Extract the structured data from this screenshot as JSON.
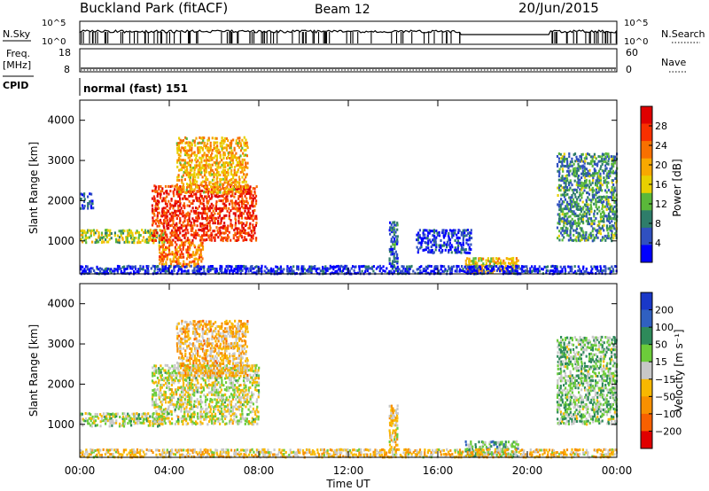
{
  "header": {
    "site": "Buckland Park (fitACF)",
    "beam": "Beam 12",
    "date": "20/Jun/2015"
  },
  "side_labels": {
    "nsky": "N.Sky",
    "nsearch": "N.Search",
    "freq": "Freq.",
    "freq_unit": "[MHz]",
    "nave": "Nave",
    "cpid": "CPID"
  },
  "status_panels": {
    "noise_ticks_left": [
      "10^5",
      "10^0"
    ],
    "noise_ticks_right": [
      "10^5",
      "10^0"
    ],
    "freq_ticks_left": [
      "18",
      "8"
    ],
    "nave_ticks_right": [
      "60",
      "0"
    ],
    "cpid_text": "normal (fast) 151"
  },
  "chart_data": [
    {
      "type": "heatmap",
      "name": "power",
      "xlabel": "Time UT",
      "ylabel": "Slant Range [km]",
      "xlim_hours": [
        0,
        24
      ],
      "ylim_km": [
        180,
        4500
      ],
      "x_tick_labels": [
        "00:00",
        "04:00",
        "08:00",
        "12:00",
        "16:00",
        "20:00",
        "00:00"
      ],
      "y_ticks": [
        1000,
        2000,
        3000,
        4000
      ],
      "colorbar": {
        "label": "Power [dB]",
        "ticks": [
          4,
          8,
          12,
          16,
          20,
          24,
          28
        ],
        "colors": [
          "#0000ff",
          "#3050c0",
          "#2e7d6a",
          "#5ab83a",
          "#e8d000",
          "#f8a800",
          "#f87000",
          "#f83000",
          "#e00000"
        ]
      },
      "regions": [
        {
          "t": [
            0.0,
            3.8
          ],
          "r": [
            950,
            1300
          ],
          "level": 0.45
        },
        {
          "t": [
            0.0,
            0.6
          ],
          "r": [
            1800,
            2200
          ],
          "level": 0.15
        },
        {
          "t": [
            3.2,
            7.9
          ],
          "r": [
            1000,
            2400
          ],
          "level": 0.85
        },
        {
          "t": [
            4.3,
            7.5
          ],
          "r": [
            2200,
            3600
          ],
          "level": 0.6
        },
        {
          "t": [
            3.5,
            5.5
          ],
          "r": [
            350,
            1000
          ],
          "level": 0.7
        },
        {
          "t": [
            13.8,
            14.2
          ],
          "r": [
            300,
            1500
          ],
          "level": 0.2
        },
        {
          "t": [
            15.0,
            17.5
          ],
          "r": [
            700,
            1300
          ],
          "level": 0.1
        },
        {
          "t": [
            17.2,
            19.6
          ],
          "r": [
            200,
            600
          ],
          "level": 0.55
        },
        {
          "t": [
            21.3,
            24.0
          ],
          "r": [
            1000,
            3200
          ],
          "level": 0.3
        },
        {
          "t": [
            0.0,
            24.0
          ],
          "r": [
            180,
            400
          ],
          "level": 0.1
        }
      ]
    },
    {
      "type": "heatmap",
      "name": "velocity",
      "xlabel": "Time UT",
      "ylabel": "Slant Range [km]",
      "xlim_hours": [
        0,
        24
      ],
      "ylim_km": [
        180,
        4500
      ],
      "x_tick_labels": [
        "00:00",
        "04:00",
        "08:00",
        "12:00",
        "16:00",
        "20:00",
        "00:00"
      ],
      "y_ticks": [
        1000,
        2000,
        3000,
        4000
      ],
      "colorbar": {
        "label": "Velocity [m s⁻¹]",
        "ticks": [
          "200",
          "100",
          "50",
          "15",
          "−15",
          "−50",
          "−100",
          "−200"
        ],
        "colors": [
          "#1a38c8",
          "#3060c0",
          "#2e8a5a",
          "#6ccc3a",
          "#c8c8c8",
          "#f8b800",
          "#f89000",
          "#f86000",
          "#e00000"
        ]
      },
      "regions": [
        {
          "t": [
            0.0,
            3.8
          ],
          "r": [
            950,
            1300
          ],
          "level": 0.45
        },
        {
          "t": [
            3.2,
            8.0
          ],
          "r": [
            1000,
            2500
          ],
          "level": 0.5
        },
        {
          "t": [
            4.3,
            7.5
          ],
          "r": [
            2200,
            3600
          ],
          "level": 0.62
        },
        {
          "t": [
            13.8,
            14.2
          ],
          "r": [
            300,
            1500
          ],
          "level": 0.6
        },
        {
          "t": [
            17.2,
            19.6
          ],
          "r": [
            200,
            600
          ],
          "level": 0.35
        },
        {
          "t": [
            21.3,
            24.0
          ],
          "r": [
            1000,
            3200
          ],
          "level": 0.4
        },
        {
          "t": [
            0.0,
            24.0
          ],
          "r": [
            180,
            400
          ],
          "level": 0.6
        }
      ]
    }
  ]
}
